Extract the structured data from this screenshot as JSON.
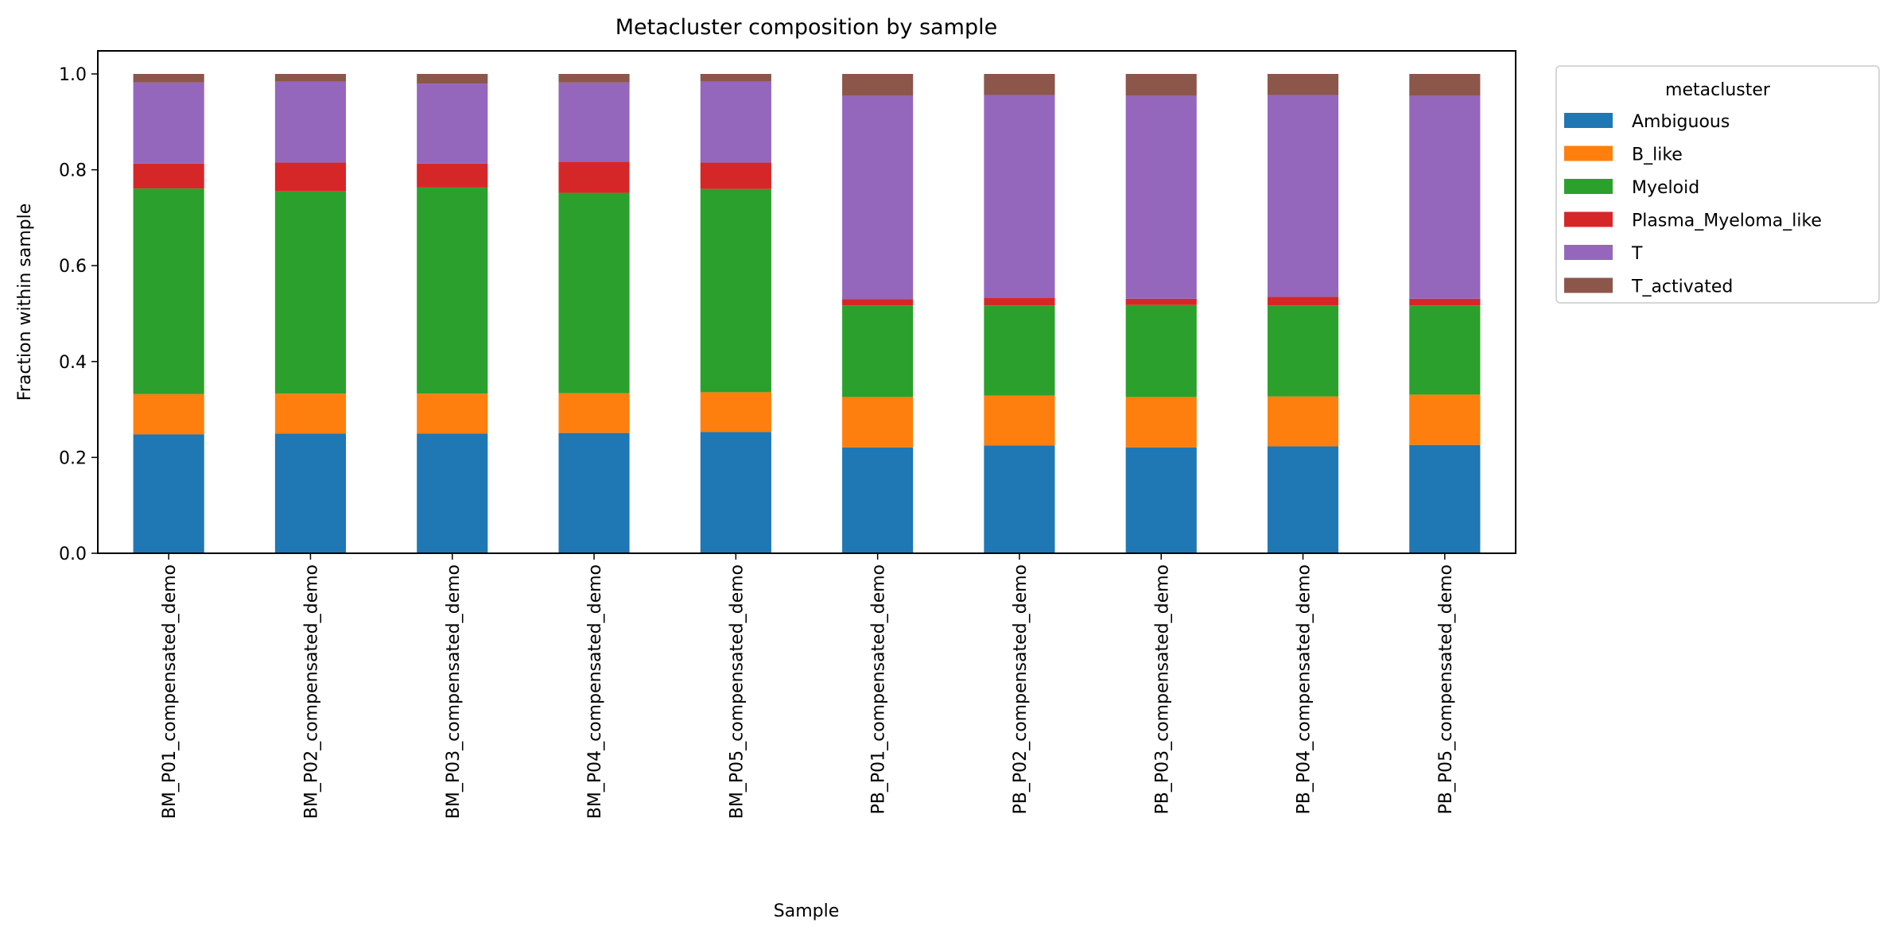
{
  "chart_data": {
    "type": "bar",
    "stacked": true,
    "title": "Metacluster composition by sample",
    "xlabel": "Sample",
    "ylabel": "Fraction within sample",
    "ylim": [
      0,
      1.05
    ],
    "yticks": [
      "0.0",
      "0.2",
      "0.4",
      "0.6",
      "0.8",
      "1.0"
    ],
    "grid": false,
    "legend": {
      "title": "metacluster",
      "placement": "outside-top-right"
    },
    "categories": [
      "BM_P01_compensated_demo",
      "BM_P02_compensated_demo",
      "BM_P03_compensated_demo",
      "BM_P04_compensated_demo",
      "BM_P05_compensated_demo",
      "PB_P01_compensated_demo",
      "PB_P02_compensated_demo",
      "PB_P03_compensated_demo",
      "PB_P04_compensated_demo",
      "PB_P05_compensated_demo"
    ],
    "series": [
      {
        "name": "Ambiguous",
        "color": "#1f77b4",
        "values": [
          0.248,
          0.25,
          0.25,
          0.251,
          0.253,
          0.221,
          0.225,
          0.221,
          0.223,
          0.226
        ]
      },
      {
        "name": "B_like",
        "color": "#ff7f0e",
        "values": [
          0.084,
          0.083,
          0.083,
          0.083,
          0.083,
          0.105,
          0.104,
          0.105,
          0.104,
          0.105
        ]
      },
      {
        "name": "Myeloid",
        "color": "#2ca02c",
        "values": [
          0.429,
          0.422,
          0.43,
          0.418,
          0.424,
          0.191,
          0.188,
          0.192,
          0.19,
          0.186
        ]
      },
      {
        "name": "Plasma_Myeloma_like",
        "color": "#d62728",
        "values": [
          0.052,
          0.06,
          0.05,
          0.065,
          0.055,
          0.013,
          0.016,
          0.013,
          0.018,
          0.014
        ]
      },
      {
        "name": "T",
        "color": "#9467bd",
        "values": [
          0.169,
          0.169,
          0.167,
          0.165,
          0.169,
          0.424,
          0.423,
          0.423,
          0.421,
          0.423
        ]
      },
      {
        "name": "T_activated",
        "color": "#8c564b",
        "values": [
          0.018,
          0.016,
          0.02,
          0.018,
          0.016,
          0.046,
          0.044,
          0.046,
          0.044,
          0.046
        ]
      }
    ]
  }
}
